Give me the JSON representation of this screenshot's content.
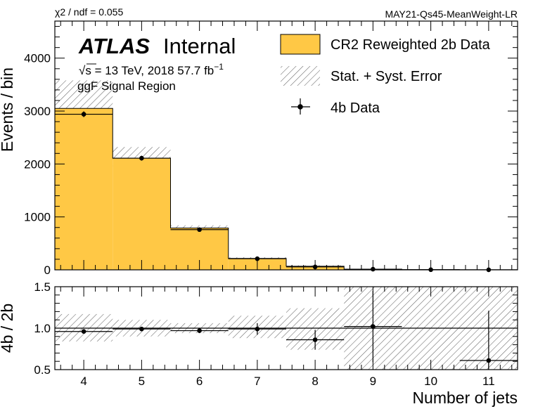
{
  "header": {
    "chi2_text": "χ2 / ndf = 0.055",
    "tag_text": "MAY21-Qs45-MeanWeight-LR"
  },
  "atlas": {
    "bold": "ATLAS",
    "status": "Internal",
    "energy_sqrt": "√s",
    "energy_line": " = 13 TeV, 2018 57.7 fb",
    "energy_exp": "−1",
    "region": "ggF Signal Region"
  },
  "legend": [
    {
      "label": "CR2 Reweighted 2b Data",
      "kind": "fill",
      "color": "#FFC845"
    },
    {
      "label": "Stat. + Syst. Error",
      "kind": "hatch"
    },
    {
      "label": "4b Data",
      "kind": "marker"
    }
  ],
  "colors": {
    "fill": "#FFC845",
    "hatch": "#666666",
    "line": "#000000"
  },
  "chart_data": [
    {
      "type": "bar",
      "panel": "main",
      "ylabel": "Events / bin",
      "xlim": [
        3.5,
        11.5
      ],
      "ylim": [
        0,
        4700
      ],
      "yticks": [
        0,
        1000,
        2000,
        3000,
        4000
      ],
      "bins": [
        4,
        5,
        6,
        7,
        8,
        9,
        10,
        11
      ],
      "series": [
        {
          "name": "CR2 Reweighted 2b Data",
          "kind": "histogram",
          "values": [
            3050,
            2110,
            790,
            215,
            68,
            12,
            3,
            1
          ]
        },
        {
          "name": "Stat. + Syst. Error",
          "kind": "error-band",
          "low": [
            2560,
            1900,
            740,
            190,
            50,
            5,
            0,
            0
          ],
          "high": [
            3580,
            2320,
            840,
            240,
            86,
            19,
            6,
            2
          ]
        },
        {
          "name": "4b Data",
          "kind": "points",
          "values": [
            2940,
            2110,
            760,
            210,
            56,
            12,
            3,
            1
          ],
          "yerr": [
            54,
            46,
            28,
            15,
            8,
            4,
            2,
            1
          ]
        }
      ]
    },
    {
      "type": "scatter",
      "panel": "ratio",
      "xlabel": "Number of jets",
      "ylabel": "4b / 2b",
      "xlim": [
        3.5,
        11.5
      ],
      "ylim": [
        0.5,
        1.5
      ],
      "yticks": [
        0.5,
        1.0,
        1.5
      ],
      "ytick_labels": [
        "0.5",
        "1.0",
        "1.5"
      ],
      "xticks": [
        4,
        5,
        6,
        7,
        8,
        9,
        10,
        11
      ],
      "reference": 1.0,
      "band_low": [
        0.84,
        0.9,
        0.94,
        0.88,
        0.74,
        0.5,
        0.5,
        0.5
      ],
      "band_high": [
        1.17,
        1.1,
        1.06,
        1.15,
        1.24,
        1.5,
        1.5,
        1.5
      ],
      "x": [
        4,
        5,
        6,
        7,
        8,
        9,
        11
      ],
      "values": [
        0.96,
        0.99,
        0.97,
        0.99,
        0.86,
        1.02,
        0.61
      ],
      "yerr": [
        0.02,
        0.02,
        0.03,
        0.07,
        0.12,
        0.43,
        0.6
      ]
    }
  ]
}
